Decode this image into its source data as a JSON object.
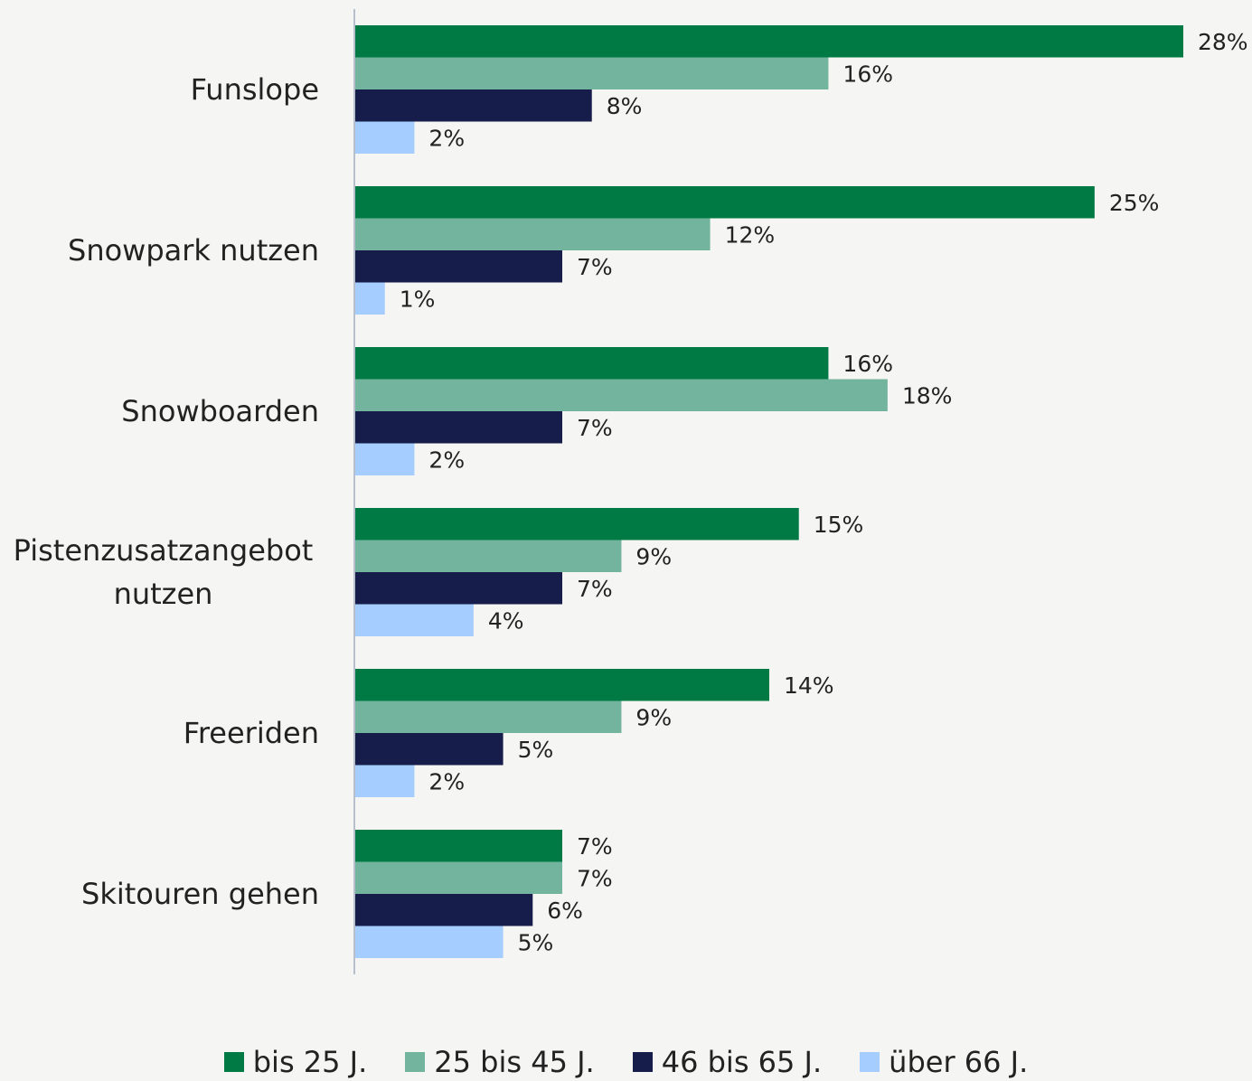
{
  "chart_data": {
    "type": "bar",
    "orientation": "horizontal",
    "categories": [
      "Funslope",
      "Snowpark nutzen",
      "Snowboarden",
      "Pistenzusatzangebot nutzen",
      "Freeriden",
      "Skitouren gehen"
    ],
    "series": [
      {
        "name": "bis 25 J.",
        "color": "#007a45",
        "values": [
          28,
          25,
          16,
          15,
          14,
          7
        ]
      },
      {
        "name": "25 bis 45 J.",
        "color": "#73b49e",
        "values": [
          16,
          12,
          18,
          9,
          9,
          7
        ]
      },
      {
        "name": "46 bis 65 J.",
        "color": "#161d4a",
        "values": [
          8,
          7,
          7,
          7,
          5,
          6
        ]
      },
      {
        "name": "über 66 J.",
        "color": "#a6cdff",
        "values": [
          2,
          1,
          2,
          4,
          2,
          5
        ]
      }
    ],
    "value_labels": [
      [
        "28%",
        "25%",
        "16%",
        "15%",
        "14%",
        "7%"
      ],
      [
        "16%",
        "12%",
        "18%",
        "9%",
        "9%",
        "7%"
      ],
      [
        "8%",
        "7%",
        "7%",
        "7%",
        "5%",
        "6%"
      ],
      [
        "2%",
        "1%",
        "2%",
        "4%",
        "2%",
        "5%"
      ]
    ],
    "xlim": [
      0,
      28
    ],
    "legend": "bottom"
  }
}
